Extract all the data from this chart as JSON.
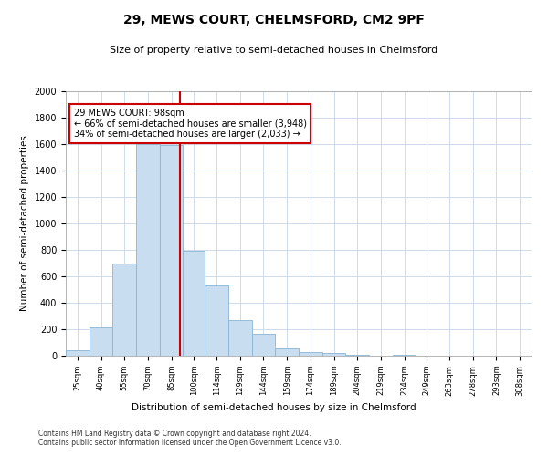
{
  "title": "29, MEWS COURT, CHELMSFORD, CM2 9PF",
  "subtitle": "Size of property relative to semi-detached houses in Chelmsford",
  "xlabel": "Distribution of semi-detached houses by size in Chelmsford",
  "ylabel": "Number of semi-detached properties",
  "bar_color": "#c8ddf0",
  "bar_edge_color": "#8ab4d4",
  "annotation_line_color": "#cc0000",
  "annotation_box_color": "#cc0000",
  "property_size": 98,
  "annotation_title": "29 MEWS COURT: 98sqm",
  "annotation_line1": "← 66% of semi-detached houses are smaller (3,948)",
  "annotation_line2": "34% of semi-detached houses are larger (2,033) →",
  "footer1": "Contains HM Land Registry data © Crown copyright and database right 2024.",
  "footer2": "Contains public sector information licensed under the Open Government Licence v3.0.",
  "bins": [
    25,
    40,
    55,
    70,
    85,
    100,
    114,
    129,
    144,
    159,
    174,
    189,
    204,
    219,
    234,
    249,
    263,
    278,
    293,
    308,
    323
  ],
  "counts": [
    40,
    215,
    700,
    1600,
    1590,
    790,
    530,
    270,
    165,
    55,
    30,
    20,
    10,
    0,
    10,
    0,
    0,
    0,
    0,
    0
  ],
  "ylim": [
    0,
    2000
  ],
  "yticks": [
    0,
    200,
    400,
    600,
    800,
    1000,
    1200,
    1400,
    1600,
    1800,
    2000
  ],
  "background_color": "#ffffff",
  "grid_color": "#c8d4e8"
}
